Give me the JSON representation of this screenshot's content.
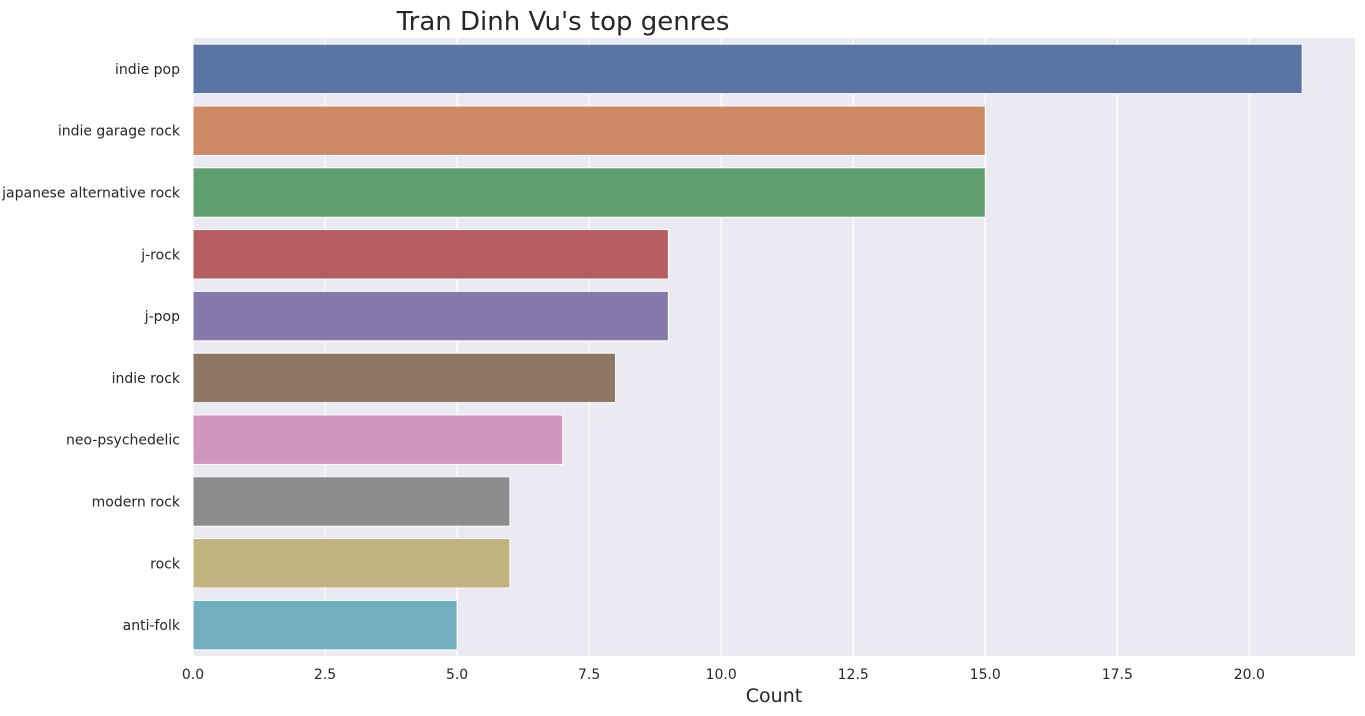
{
  "chart_data": {
    "type": "bar",
    "orientation": "horizontal",
    "title": "Tran Dinh Vu's top genres",
    "xlabel": "Count",
    "ylabel": "",
    "xlim": [
      0,
      22
    ],
    "xticks": [
      0,
      2.5,
      5,
      7.5,
      10,
      12.5,
      15,
      17.5,
      20
    ],
    "xtick_labels": [
      "0.0",
      "2.5",
      "5.0",
      "7.5",
      "10.0",
      "12.5",
      "15.0",
      "17.5",
      "20.0"
    ],
    "grid": true,
    "categories": [
      "indie pop",
      "indie garage rock",
      "japanese alternative rock",
      "j-rock",
      "j-pop",
      "indie rock",
      "neo-psychedelic",
      "modern rock",
      "rock",
      "anti-folk"
    ],
    "values": [
      21,
      15,
      15,
      9,
      9,
      8,
      7,
      6,
      6,
      5
    ],
    "colors": [
      "#5975a4",
      "#cc8963",
      "#5f9e6e",
      "#b55d60",
      "#857aab",
      "#8d7866",
      "#d095bf",
      "#8c8c8c",
      "#c1b37f",
      "#71aec0"
    ],
    "background_color": "#eaeaf2",
    "grid_color": "#ffffff"
  }
}
